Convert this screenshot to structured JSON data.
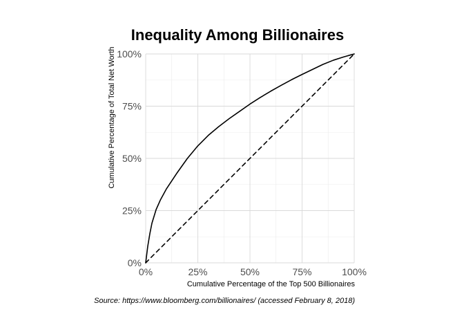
{
  "chart_data": {
    "type": "line",
    "title": "Inequality Among Billionaires",
    "xlabel": "Cumulative Percentage of the Top 500 Billionaires",
    "ylabel": "Cumulative Percentage of Total Net Worth",
    "caption": "Source: https://www.bloomberg.com/billionaires/ (accessed February 8, 2018)",
    "xlim": [
      0,
      1
    ],
    "ylim": [
      0,
      1
    ],
    "x_ticks": [
      0,
      0.25,
      0.5,
      0.75,
      1
    ],
    "x_tick_labels": [
      "0%",
      "25%",
      "50%",
      "75%",
      "100%"
    ],
    "y_ticks": [
      0,
      0.25,
      0.5,
      0.75,
      1
    ],
    "y_tick_labels": [
      "0%",
      "25%",
      "50%",
      "75%",
      "100%"
    ],
    "grid": true,
    "background": "#ffffff",
    "series": [
      {
        "line_style": "solid",
        "color": "#000000",
        "x": [
          0,
          0.005,
          0.01,
          0.02,
          0.03,
          0.05,
          0.07,
          0.1,
          0.15,
          0.2,
          0.25,
          0.3,
          0.35,
          0.4,
          0.45,
          0.5,
          0.55,
          0.6,
          0.65,
          0.7,
          0.75,
          0.8,
          0.85,
          0.9,
          0.95,
          1
        ],
        "y": [
          0,
          0.04,
          0.08,
          0.14,
          0.19,
          0.255,
          0.3,
          0.355,
          0.43,
          0.5,
          0.56,
          0.61,
          0.652,
          0.69,
          0.725,
          0.76,
          0.792,
          0.822,
          0.85,
          0.877,
          0.902,
          0.926,
          0.95,
          0.97,
          0.986,
          1
        ]
      },
      {
        "line_style": "dashed",
        "color": "#000000",
        "x": [
          0,
          1
        ],
        "y": [
          0,
          1
        ]
      }
    ]
  }
}
